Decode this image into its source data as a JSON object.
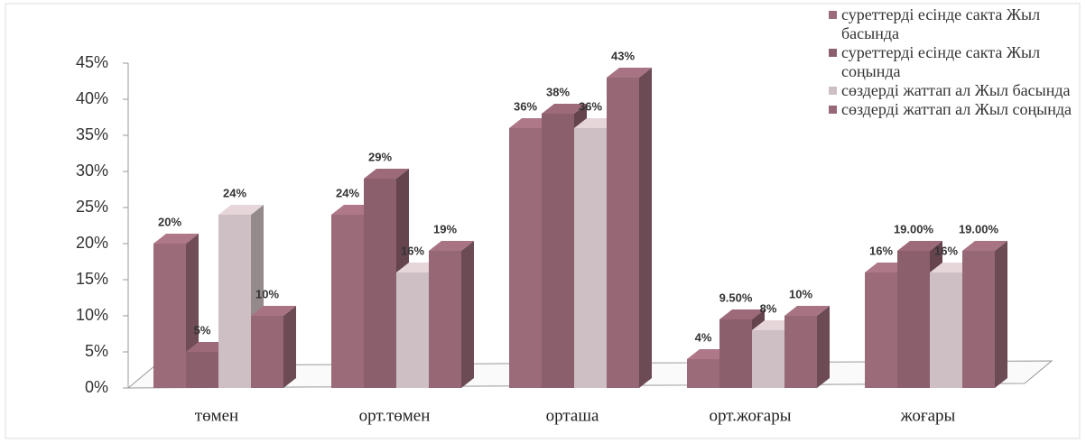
{
  "chart_data": {
    "type": "bar3d",
    "categories": [
      "төмен",
      "орт.төмен",
      "орташа",
      "орт.жоғары",
      "жоғары"
    ],
    "series": [
      {
        "name": "суреттерді есінде сакта Жыл басында",
        "color": "#9b6b79",
        "values": [
          20,
          24,
          36,
          4,
          16
        ],
        "value_labels": [
          "20%",
          "24%",
          "36%",
          "4%",
          "16%"
        ]
      },
      {
        "name": "суреттерді есінде сакта Жыл соңында",
        "color": "#8c5f6d",
        "values": [
          5,
          29,
          38,
          9.5,
          19
        ],
        "value_labels": [
          "5%",
          "29%",
          "38%",
          "9.50%",
          "19.00%"
        ]
      },
      {
        "name": "сөздерді жаттап ал Жыл басында",
        "color": "#cdbfc3",
        "values": [
          24,
          16,
          36,
          8,
          16
        ],
        "value_labels": [
          "24%",
          "16%",
          "36%",
          "8%",
          "16%"
        ]
      },
      {
        "name": "сөздерді жаттап ал Жыл соңында",
        "color": "#966876",
        "values": [
          10,
          19,
          43,
          10,
          19
        ],
        "value_labels": [
          "10%",
          "19%",
          "43%",
          "10%",
          "19.00%"
        ]
      }
    ],
    "ylim": [
      0,
      45
    ],
    "yticks": [
      {
        "value": 0,
        "label": "0%"
      },
      {
        "value": 5,
        "label": "5%"
      },
      {
        "value": 10,
        "label": "10%"
      },
      {
        "value": 15,
        "label": "15%"
      },
      {
        "value": 20,
        "label": "20%"
      },
      {
        "value": 25,
        "label": "25%"
      },
      {
        "value": 30,
        "label": "30%"
      },
      {
        "value": 35,
        "label": "35%"
      },
      {
        "value": 40,
        "label": "40%"
      },
      {
        "value": 45,
        "label": "45%"
      }
    ],
    "legend": "top-right"
  }
}
